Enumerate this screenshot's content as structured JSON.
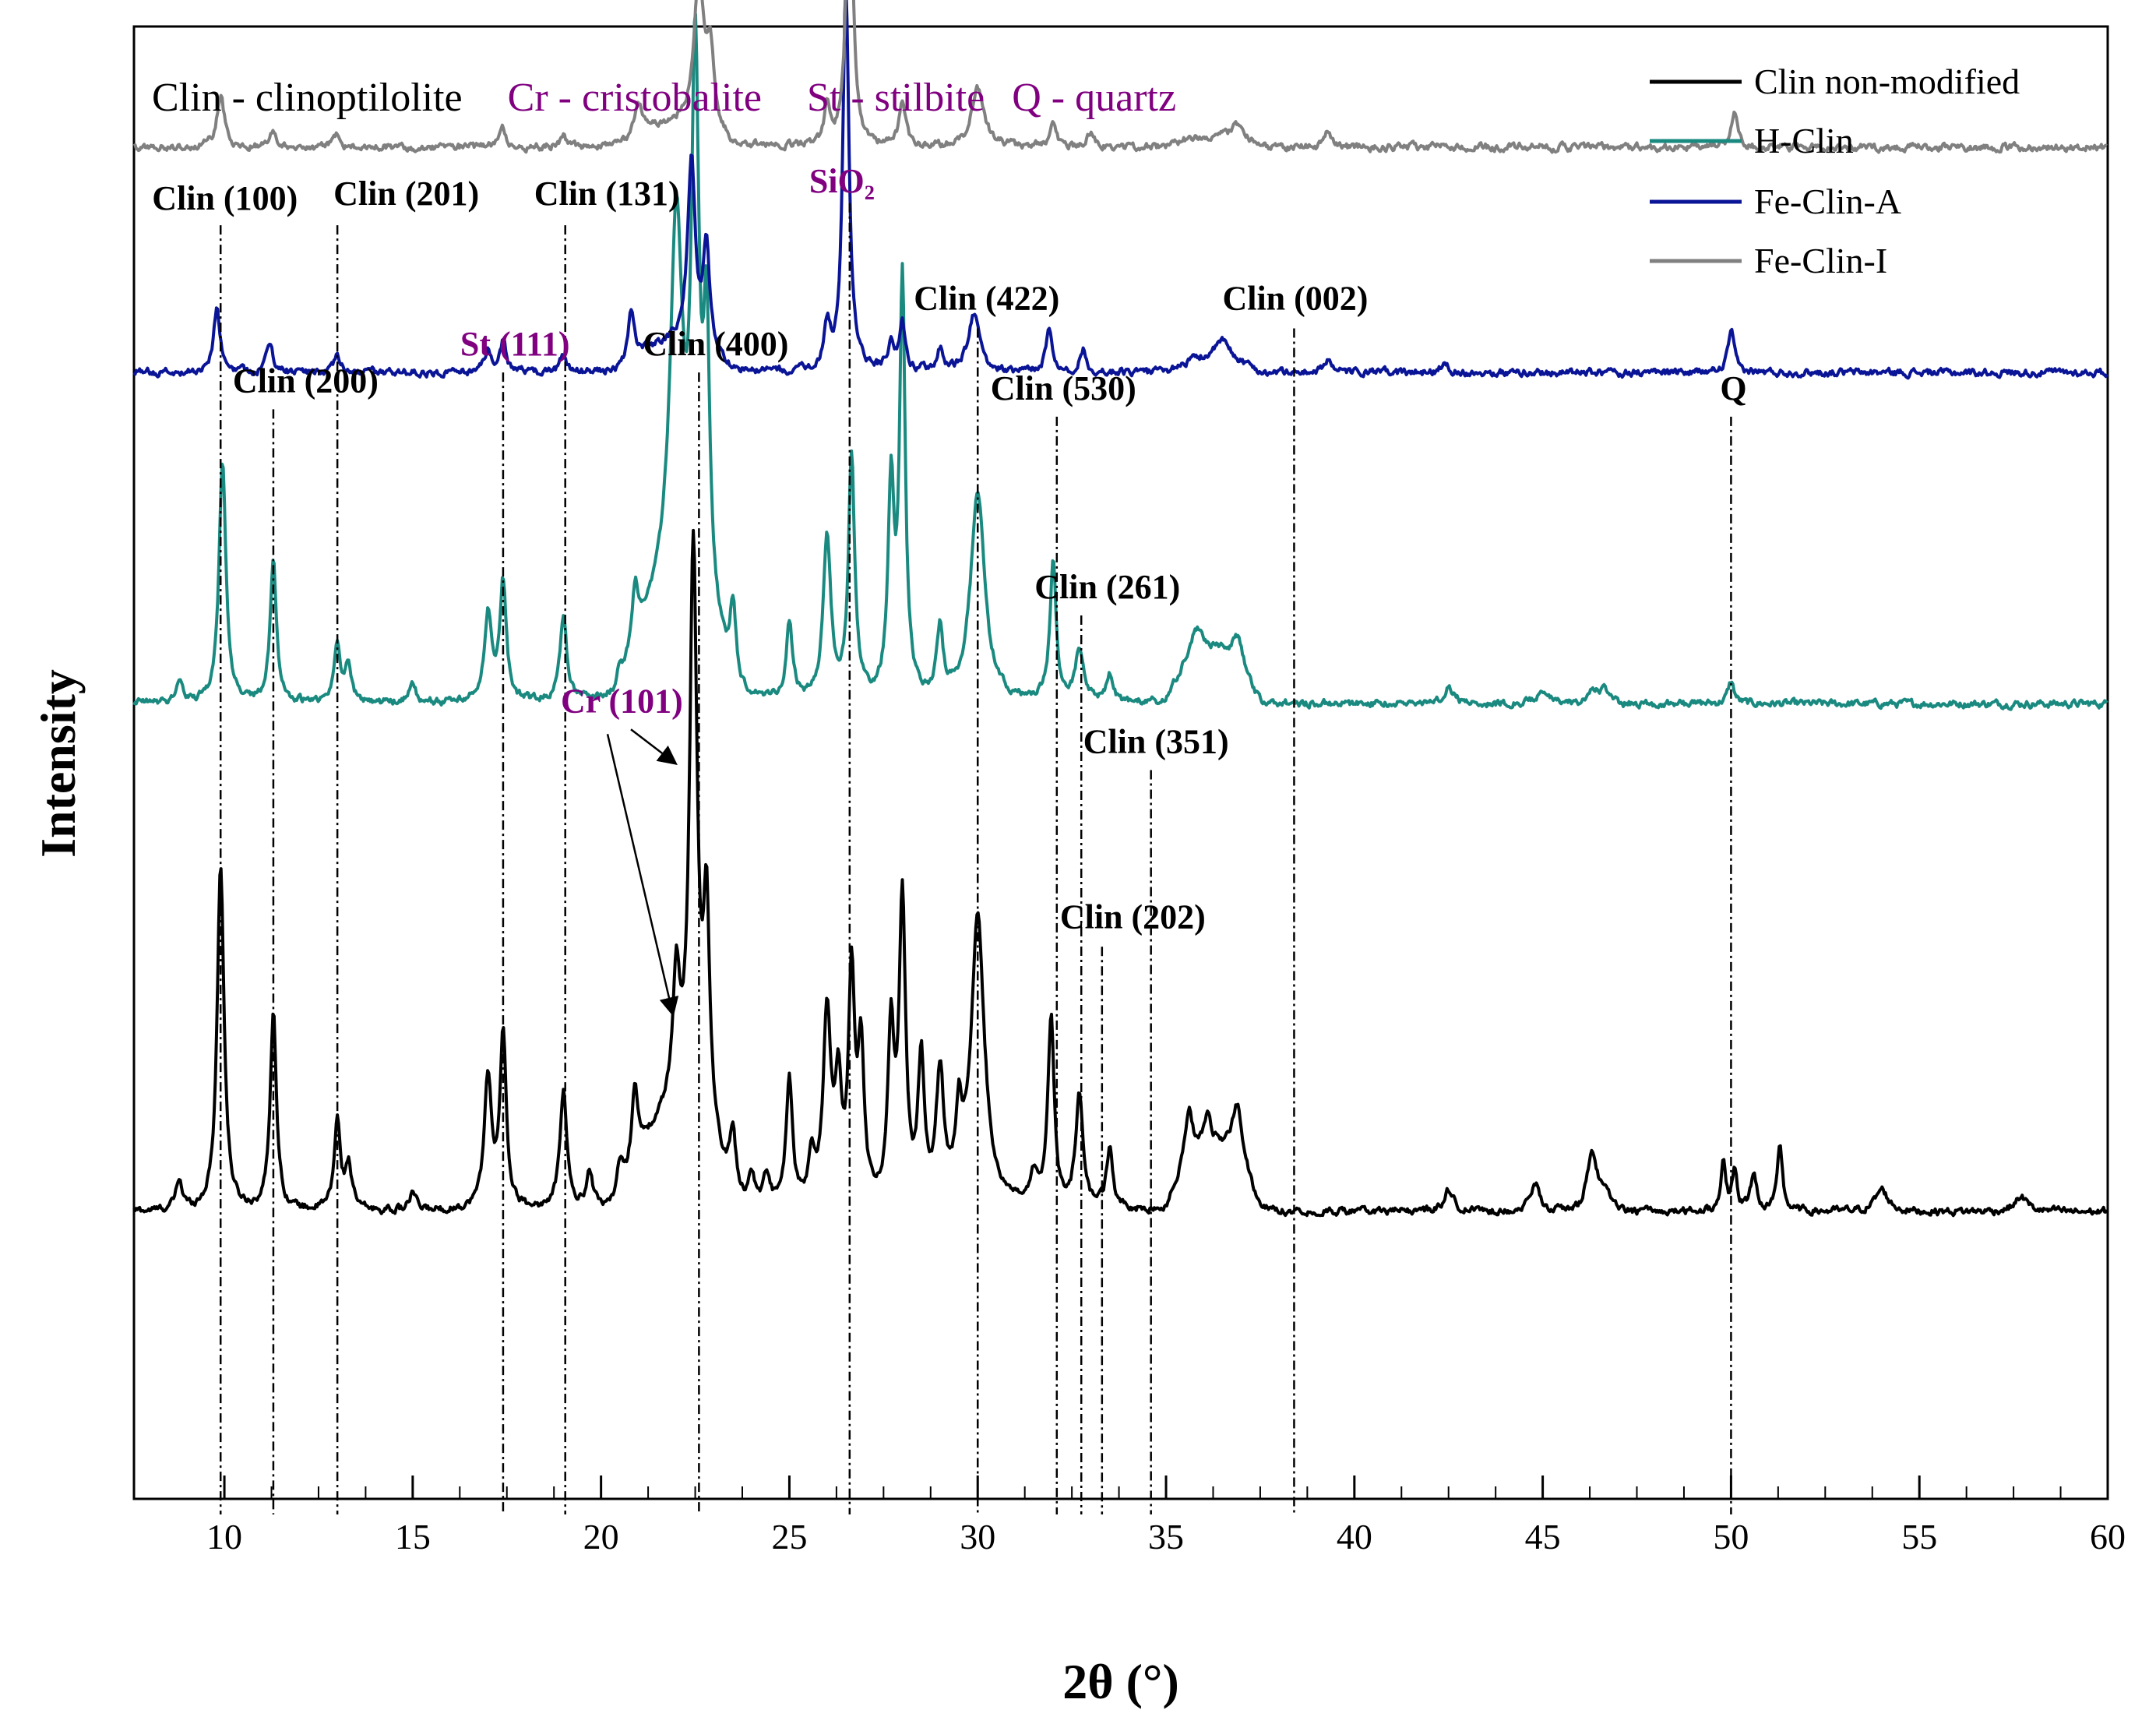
{
  "chart_data": {
    "type": "line",
    "title": "",
    "xlabel": "2θ (°)",
    "ylabel": "Intensity",
    "xlim": [
      7.6,
      60
    ],
    "ylim": [
      0,
      1
    ],
    "xticks_major": [
      10,
      15,
      20,
      25,
      30,
      35,
      40,
      45,
      50,
      55,
      60
    ],
    "xticks_minor_step": 1.25,
    "phase_legend": [
      {
        "text": "Clin - clinoptilolite",
        "color": "#000000"
      },
      {
        "text": "Cr - cristobalite",
        "color": "#800080"
      },
      {
        "text": "St - stilbite",
        "color": "#800080"
      },
      {
        "text": "Q - quartz",
        "color": "#800080"
      }
    ],
    "series_legend": [
      {
        "name": "Clin non-modified",
        "color": "#000000"
      },
      {
        "name": "H-Clin",
        "color": "#1a8a80"
      },
      {
        "name": "Fe-Clin-A",
        "color": "#0a1496"
      },
      {
        "name": "Fe-Clin-I",
        "color": "#808080"
      }
    ],
    "series": [
      {
        "name": "Clin non-modified",
        "color": "#000000",
        "baseline": 0.195,
        "bump": [
          [
            20.5,
            23.5,
            0.06
          ],
          [
            35,
            37.5,
            0.045
          ],
          [
            46,
            47,
            0.012
          ]
        ],
        "peaks": [
          [
            8.8,
            0.02,
            0.1
          ],
          [
            9.9,
            0.235,
            0.11
          ],
          [
            11.3,
            0.135,
            0.1
          ],
          [
            13.0,
            0.06,
            0.1
          ],
          [
            13.3,
            0.03,
            0.1
          ],
          [
            15.0,
            0.012,
            0.1
          ],
          [
            17.0,
            0.09,
            0.12
          ],
          [
            17.4,
            0.115,
            0.1
          ],
          [
            19.0,
            0.08,
            0.11
          ],
          [
            19.7,
            0.025,
            0.1
          ],
          [
            20.5,
            0.03,
            0.1
          ],
          [
            20.9,
            0.055,
            0.1
          ],
          [
            22.0,
            0.09,
            0.12
          ],
          [
            22.45,
            0.39,
            0.12
          ],
          [
            22.8,
            0.15,
            0.1
          ],
          [
            23.5,
            0.05,
            0.1
          ],
          [
            24.0,
            0.02,
            0.1
          ],
          [
            24.4,
            0.02,
            0.1
          ],
          [
            25.0,
            0.085,
            0.1
          ],
          [
            25.6,
            0.03,
            0.1
          ],
          [
            26.0,
            0.13,
            0.12
          ],
          [
            26.3,
            0.075,
            0.1
          ],
          [
            26.65,
            0.15,
            0.1
          ],
          [
            26.9,
            0.1,
            0.1
          ],
          [
            27.7,
            0.115,
            0.1
          ],
          [
            28.0,
            0.205,
            0.1
          ],
          [
            28.5,
            0.095,
            0.1
          ],
          [
            29.0,
            0.085,
            0.12
          ],
          [
            29.5,
            0.05,
            0.1
          ],
          [
            30.0,
            0.195,
            0.22
          ],
          [
            31.5,
            0.02,
            0.1
          ],
          [
            31.95,
            0.13,
            0.1
          ],
          [
            32.7,
            0.075,
            0.12
          ],
          [
            33.5,
            0.04,
            0.1
          ],
          [
            35.6,
            0.035,
            0.12
          ],
          [
            36.1,
            0.02,
            0.1
          ],
          [
            36.9,
            0.04,
            0.15
          ],
          [
            42.5,
            0.015,
            0.15
          ],
          [
            44.8,
            0.018,
            0.15
          ],
          [
            46.3,
            0.03,
            0.15
          ],
          [
            49.8,
            0.035,
            0.08
          ],
          [
            50.1,
            0.025,
            0.08
          ],
          [
            50.6,
            0.025,
            0.1
          ],
          [
            51.3,
            0.045,
            0.08
          ],
          [
            54.0,
            0.015,
            0.2
          ],
          [
            57.7,
            0.01,
            0.2
          ]
        ]
      },
      {
        "name": "H-Clin",
        "color": "#1a8a80",
        "baseline": 0.54,
        "bump": [
          [
            20.5,
            23.5,
            0.07
          ],
          [
            35,
            37.5,
            0.035
          ],
          [
            46,
            47,
            0.01
          ]
        ],
        "peaks": [
          [
            8.8,
            0.015,
            0.1
          ],
          [
            9.95,
            0.165,
            0.11
          ],
          [
            11.3,
            0.095,
            0.1
          ],
          [
            13.0,
            0.04,
            0.1
          ],
          [
            13.3,
            0.025,
            0.1
          ],
          [
            15.0,
            0.012,
            0.1
          ],
          [
            17.0,
            0.06,
            0.12
          ],
          [
            17.4,
            0.08,
            0.1
          ],
          [
            19.0,
            0.055,
            0.11
          ],
          [
            20.5,
            0.02,
            0.1
          ],
          [
            20.9,
            0.04,
            0.1
          ],
          [
            22.0,
            0.25,
            0.2
          ],
          [
            22.5,
            0.355,
            0.12
          ],
          [
            22.8,
            0.18,
            0.1
          ],
          [
            23.5,
            0.06,
            0.1
          ],
          [
            25.0,
            0.05,
            0.1
          ],
          [
            26.0,
            0.11,
            0.12
          ],
          [
            26.65,
            0.165,
            0.1
          ],
          [
            27.7,
            0.14,
            0.1
          ],
          [
            28.0,
            0.28,
            0.09
          ],
          [
            29.0,
            0.045,
            0.1
          ],
          [
            30.0,
            0.145,
            0.22
          ],
          [
            32.0,
            0.095,
            0.1
          ],
          [
            32.7,
            0.035,
            0.12
          ],
          [
            33.5,
            0.02,
            0.1
          ],
          [
            35.8,
            0.02,
            0.2
          ],
          [
            36.9,
            0.02,
            0.15
          ],
          [
            42.5,
            0.012,
            0.15
          ],
          [
            45.0,
            0.01,
            0.15
          ],
          [
            50.0,
            0.015,
            0.1
          ]
        ]
      },
      {
        "name": "Fe-Clin-A",
        "color": "#0a1496",
        "baseline": 0.765,
        "bump": [
          [
            20.5,
            23.5,
            0.02
          ],
          [
            35,
            37.5,
            0.01
          ]
        ],
        "peaks": [
          [
            9.8,
            0.045,
            0.1
          ],
          [
            11.2,
            0.02,
            0.1
          ],
          [
            13.0,
            0.01,
            0.1
          ],
          [
            17.0,
            0.015,
            0.1
          ],
          [
            17.4,
            0.02,
            0.1
          ],
          [
            19.0,
            0.012,
            0.1
          ],
          [
            20.8,
            0.035,
            0.1
          ],
          [
            22.4,
            0.125,
            0.12
          ],
          [
            22.8,
            0.07,
            0.1
          ],
          [
            26.0,
            0.03,
            0.1
          ],
          [
            26.5,
            0.26,
            0.1
          ],
          [
            27.7,
            0.02,
            0.1
          ],
          [
            28.0,
            0.03,
            0.1
          ],
          [
            29.0,
            0.015,
            0.1
          ],
          [
            29.9,
            0.04,
            0.18
          ],
          [
            31.9,
            0.03,
            0.1
          ],
          [
            32.8,
            0.015,
            0.1
          ],
          [
            36.5,
            0.012,
            0.2
          ],
          [
            39.3,
            0.01,
            0.1
          ],
          [
            42.4,
            0.008,
            0.1
          ],
          [
            50.0,
            0.028,
            0.1
          ]
        ]
      },
      {
        "name": "Fe-Clin-I",
        "color": "#808080",
        "baseline": 0.918,
        "bump": [
          [
            20.5,
            23.5,
            0.015
          ],
          [
            35,
            37.5,
            0.008
          ]
        ],
        "peaks": [
          [
            9.9,
            0.035,
            0.12
          ],
          [
            11.3,
            0.012,
            0.1
          ],
          [
            13.0,
            0.008,
            0.1
          ],
          [
            17.4,
            0.012,
            0.1
          ],
          [
            19.0,
            0.008,
            0.1
          ],
          [
            21.0,
            0.02,
            0.12
          ],
          [
            22.6,
            0.1,
            0.16
          ],
          [
            22.9,
            0.05,
            0.12
          ],
          [
            26.0,
            0.025,
            0.1
          ],
          [
            26.6,
            0.215,
            0.1
          ],
          [
            28.0,
            0.03,
            0.1
          ],
          [
            30.0,
            0.04,
            0.2
          ],
          [
            32.0,
            0.02,
            0.1
          ],
          [
            33.0,
            0.01,
            0.1
          ],
          [
            36.9,
            0.01,
            0.15
          ],
          [
            39.3,
            0.01,
            0.1
          ],
          [
            50.1,
            0.025,
            0.1
          ]
        ]
      }
    ],
    "reference_lines": [
      {
        "x": 9.9,
        "label": "Clin (100)",
        "color": "#000000",
        "top": 0.865
      },
      {
        "x": 11.3,
        "label": "Clin (200)",
        "color": "#000000",
        "top": 0.74
      },
      {
        "x": 13.0,
        "label": "Clin (201)",
        "color": "#000000",
        "top": 0.865
      },
      {
        "x": 17.4,
        "label": "St (111)",
        "color": "#800080",
        "top": 0.765
      },
      {
        "x": 19.05,
        "label": "Clin (131)",
        "color": "#000000",
        "top": 0.865
      },
      {
        "x": 22.6,
        "label": "Clin (400)",
        "color": "#000000",
        "top": 0.765
      },
      {
        "x": 26.6,
        "label": "SiO₂",
        "color": "#800080",
        "top": 0.88
      },
      {
        "x": 30.0,
        "label": "Clin (422)",
        "color": "#000000",
        "top": 0.795
      },
      {
        "x": 32.1,
        "label": "Clin (530)",
        "color": "#000000",
        "top": 0.735
      },
      {
        "x": 32.75,
        "label": "Clin (261)",
        "color": "#000000",
        "top": 0.6
      },
      {
        "x": 33.3,
        "label": "Clin (202)",
        "color": "#000000",
        "top": 0.375
      },
      {
        "x": 34.6,
        "label": "Clin (351)",
        "color": "#000000",
        "top": 0.495
      },
      {
        "x": 38.4,
        "label": "Clin (002)",
        "color": "#000000",
        "top": 0.795
      },
      {
        "x": 50.0,
        "label": "Q",
        "color": "#000000",
        "top": 0.735
      }
    ],
    "annotation": {
      "label": "Cr (101)",
      "color": "#800080",
      "targets_x": [
        21.95,
        21.9
      ]
    }
  }
}
